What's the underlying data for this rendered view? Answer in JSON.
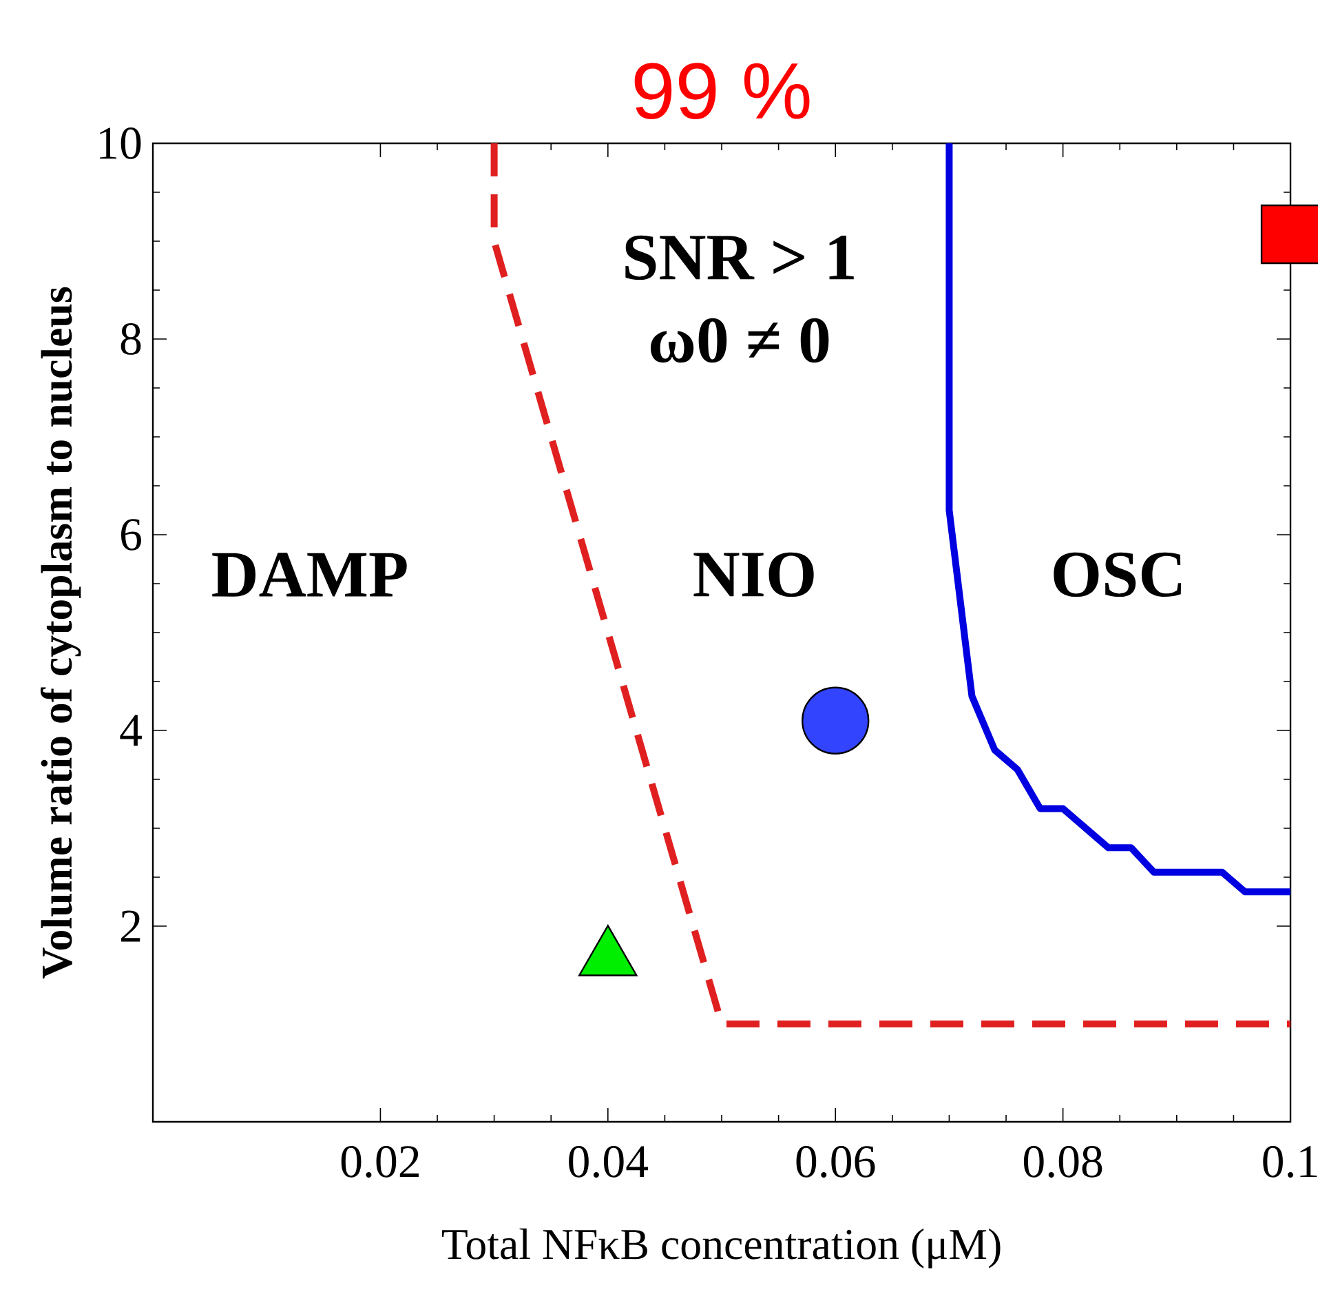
{
  "chart_data": {
    "type": "line",
    "title": "99 %",
    "xlabel": "Total NFκB concentration (μM)",
    "ylabel": "Volume ratio of cytoplasm to nucleus",
    "xlim": [
      0,
      0.1
    ],
    "ylim": [
      0,
      10
    ],
    "xticks": [
      0.02,
      0.04,
      0.06,
      0.08,
      0.1
    ],
    "yticks": [
      2,
      4,
      6,
      8,
      10
    ],
    "series": [
      {
        "color": "#e02020",
        "line_style": "dashed",
        "marker": "none",
        "x": [
          0.03,
          0.03,
          0.05,
          0.1
        ],
        "values": [
          10,
          9.0,
          1,
          1
        ]
      },
      {
        "color": "#0000e0",
        "line_style": "solid",
        "marker": "none",
        "x": [
          0.07,
          0.07,
          0.072,
          0.074,
          0.076,
          0.078,
          0.08,
          0.084,
          0.086,
          0.088,
          0.094,
          0.096,
          0.1
        ],
        "values": [
          10,
          6.25,
          4.35,
          3.8,
          3.6,
          3.2,
          3.2,
          2.8,
          2.8,
          2.55,
          2.55,
          2.35,
          2.35
        ]
      },
      {
        "type": "scatter",
        "color": "#00ee00",
        "marker": "triangle",
        "x": [
          0.04
        ],
        "values": [
          1.75
        ]
      },
      {
        "type": "scatter",
        "color": "#3344ff",
        "marker": "circle",
        "x": [
          0.06
        ],
        "values": [
          4.1
        ]
      },
      {
        "type": "scatter",
        "color": "#ff0000",
        "marker": "square",
        "x": [
          0.1
        ],
        "values": [
          9.07
        ]
      }
    ],
    "annotations": [
      "SNR > 1",
      "ω0 ≠ 0",
      "DAMP",
      "NIO",
      "OSC"
    ]
  }
}
